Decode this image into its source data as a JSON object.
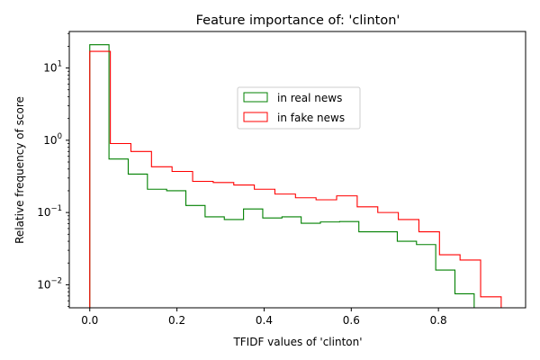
{
  "chart_data": {
    "type": "histogram-step",
    "title": "Feature importance of: 'clinton'",
    "xlabel": "TFIDF values of 'clinton'",
    "ylabel": "Relative frequency of score",
    "yscale": "log",
    "xlim": [
      -0.047,
      1.0
    ],
    "ylim": [
      0.0048,
      32
    ],
    "xticks": [
      {
        "value": 0.0,
        "label": "0.0"
      },
      {
        "value": 0.2,
        "label": "0.2"
      },
      {
        "value": 0.4,
        "label": "0.4"
      },
      {
        "value": 0.6,
        "label": "0.6"
      },
      {
        "value": 0.8,
        "label": "0.8"
      }
    ],
    "yticks": [
      {
        "value": 0.01,
        "base": "10",
        "exp": "−2"
      },
      {
        "value": 0.1,
        "base": "10",
        "exp": "−1"
      },
      {
        "value": 1,
        "base": "10",
        "exp": "0"
      },
      {
        "value": 10,
        "base": "10",
        "exp": "1"
      }
    ],
    "legend_position": "upper-center",
    "series": [
      {
        "name": "in real news",
        "color": "#008000",
        "edges": [
          0.0,
          0.0441,
          0.0882,
          0.1323,
          0.1764,
          0.2205,
          0.2646,
          0.3087,
          0.3528,
          0.3969,
          0.441,
          0.4851,
          0.5292,
          0.5733,
          0.6174,
          0.6615,
          0.7056,
          0.7497,
          0.7938,
          0.8379,
          0.882
        ],
        "values": [
          21,
          0.55,
          0.34,
          0.21,
          0.2,
          0.125,
          0.087,
          0.08,
          0.112,
          0.084,
          0.087,
          0.071,
          0.074,
          0.075,
          0.054,
          0.054,
          0.04,
          0.036,
          0.016,
          0.0075,
          0.0048
        ]
      },
      {
        "name": "in fake news",
        "color": "#ff0000",
        "edges": [
          0.0,
          0.0472,
          0.0944,
          0.1416,
          0.1888,
          0.236,
          0.2832,
          0.3304,
          0.3776,
          0.4248,
          0.472,
          0.5192,
          0.5664,
          0.6136,
          0.6608,
          0.708,
          0.7552,
          0.8024,
          0.8496,
          0.8968,
          0.944
        ],
        "values": [
          17,
          0.9,
          0.7,
          0.43,
          0.37,
          0.27,
          0.26,
          0.24,
          0.21,
          0.18,
          0.16,
          0.15,
          0.17,
          0.12,
          0.1,
          0.08,
          0.054,
          0.026,
          0.022,
          0.0068,
          0.0048
        ]
      }
    ]
  }
}
